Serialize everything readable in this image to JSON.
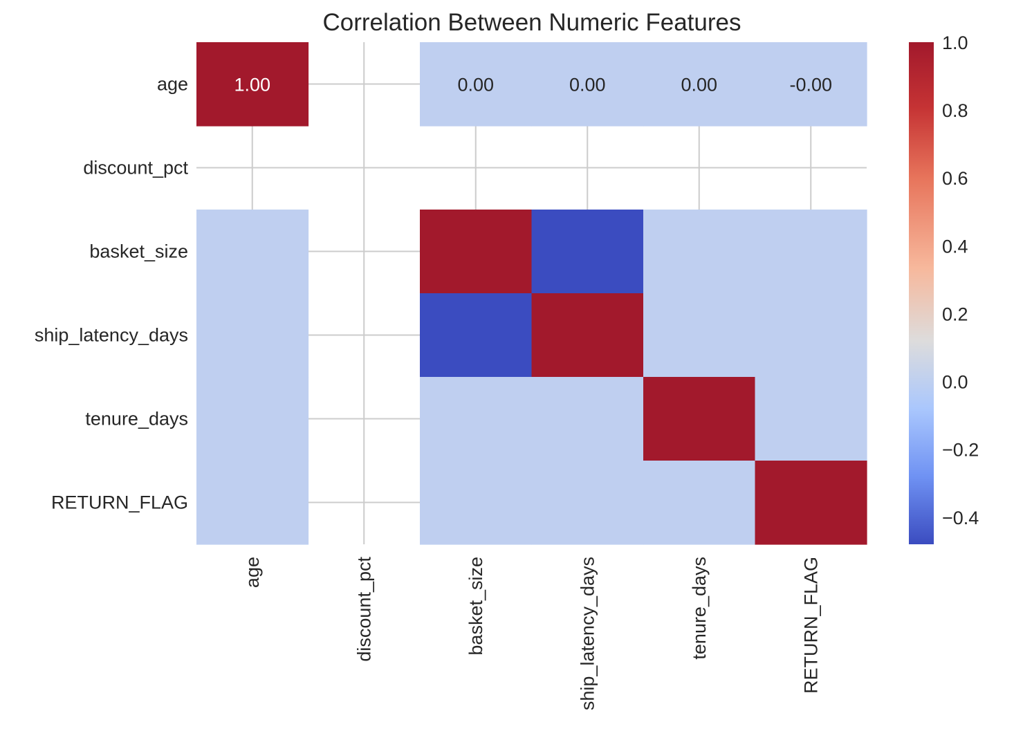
{
  "chart_data": {
    "type": "heatmap",
    "title": "Correlation Between Numeric Features",
    "xlabel": "",
    "ylabel": "",
    "colormap": "coolwarm",
    "x_categories": [
      "age",
      "discount_pct",
      "basket_size",
      "ship_latency_days",
      "tenure_days",
      "RETURN_FLAG"
    ],
    "y_categories": [
      "age",
      "discount_pct",
      "basket_size",
      "ship_latency_days",
      "tenure_days",
      "RETURN_FLAG"
    ],
    "values": [
      [
        1.0,
        null,
        0.0,
        0.0,
        0.0,
        0.0
      ],
      [
        null,
        null,
        null,
        null,
        null,
        null
      ],
      [
        0.0,
        null,
        1.0,
        -0.48,
        0.0,
        0.0
      ],
      [
        0.0,
        null,
        -0.48,
        1.0,
        0.0,
        0.0
      ],
      [
        0.0,
        null,
        0.0,
        0.0,
        1.0,
        0.0
      ],
      [
        0.0,
        null,
        0.0,
        0.0,
        0.0,
        1.0
      ]
    ],
    "annotations": [
      [
        "1.00",
        "",
        "0.00",
        "0.00",
        "0.00",
        "-0.00"
      ],
      [
        "",
        "",
        "",
        "",
        "",
        ""
      ],
      [
        "",
        "",
        "",
        "",
        "",
        ""
      ],
      [
        "",
        "",
        "",
        "",
        "",
        ""
      ],
      [
        "",
        "",
        "",
        "",
        "",
        ""
      ],
      [
        "",
        "",
        "",
        "",
        "",
        ""
      ]
    ],
    "colorbar": {
      "range": [
        -0.48,
        1.0
      ],
      "ticks": [
        1.0,
        0.8,
        0.6,
        0.4,
        0.2,
        0.0,
        -0.2,
        -0.4
      ],
      "tick_labels": [
        "1.0",
        "0.8",
        "0.6",
        "0.4",
        "0.2",
        "0.0",
        "−0.2",
        "−0.4"
      ]
    },
    "grid": true
  }
}
